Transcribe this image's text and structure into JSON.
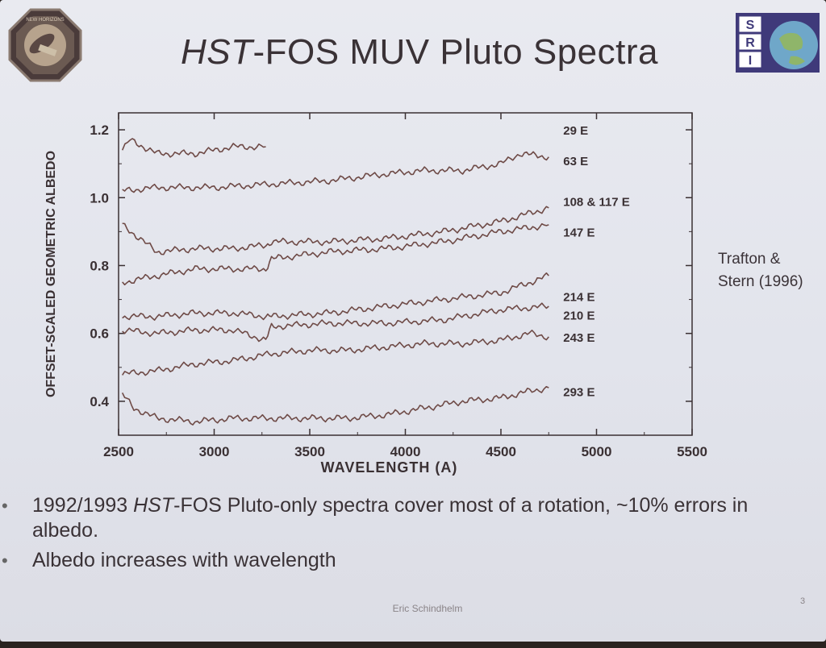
{
  "slide": {
    "title_italic": "HST",
    "title_rest": "-FOS MUV Pluto Spectra",
    "side_note_line1": "Trafton &",
    "side_note_line2": "Stern (1996)",
    "bullets": [
      {
        "italic_part": "HST",
        "before": "1992/1993 ",
        "after": "-FOS Pluto-only spectra cover most of a rotation, ~10% errors in albedo."
      },
      {
        "italic_part": "",
        "before": "Albedo increases with wavelength",
        "after": ""
      }
    ],
    "footer": "Eric Schindhelm",
    "page_number": "3"
  },
  "logos": {
    "left_icon": "new-horizons-mission-patch",
    "right_icon": "swri-logo",
    "right_text": [
      "S",
      "R",
      "I"
    ]
  },
  "colors": {
    "curve": "#6e4a46",
    "axis": "#3a3033",
    "text": "#3a3236"
  },
  "chart_data": {
    "type": "line",
    "xlabel": "WAVELENGTH (A)",
    "ylabel": "OFFSET-SCALED GEOMETRIC ALBEDO",
    "xlim": [
      2500,
      5500
    ],
    "ylim": [
      0.3,
      1.25
    ],
    "xticks": [
      2500,
      3000,
      3500,
      4000,
      4500,
      5000,
      5500
    ],
    "yticks": [
      0.4,
      0.6,
      0.8,
      1.0,
      1.2
    ],
    "ytick_labels": [
      "0.4",
      "0.6",
      "0.8",
      "1.0",
      "1.2"
    ],
    "series": [
      {
        "name": "29 E",
        "x": [
          2520,
          2560,
          2700,
          2900,
          3100,
          3270
        ],
        "y": [
          1.14,
          1.17,
          1.13,
          1.13,
          1.15,
          1.15
        ]
      },
      {
        "name": "63 E",
        "x": [
          2520,
          2700,
          3000,
          3300,
          3600,
          3900,
          4100,
          4300,
          4500,
          4600,
          4750
        ],
        "y": [
          1.02,
          1.03,
          1.03,
          1.04,
          1.05,
          1.07,
          1.08,
          1.08,
          1.1,
          1.13,
          1.12
        ]
      },
      {
        "name": "108 & 117 E",
        "x": [
          2520,
          2700,
          2900,
          3100,
          3270,
          3300,
          3600,
          3900,
          4200,
          4500,
          4750
        ],
        "y": [
          0.92,
          0.84,
          0.85,
          0.85,
          0.86,
          0.87,
          0.87,
          0.88,
          0.9,
          0.93,
          0.97
        ]
      },
      {
        "name": "147 E",
        "x": [
          2520,
          2700,
          2900,
          3100,
          3270,
          3300,
          3600,
          3900,
          4200,
          4500,
          4750
        ],
        "y": [
          0.75,
          0.77,
          0.79,
          0.79,
          0.79,
          0.82,
          0.84,
          0.85,
          0.87,
          0.9,
          0.92
        ]
      },
      {
        "name": "214 E",
        "x": [
          2520,
          2700,
          2900,
          3100,
          3270,
          3300,
          3600,
          3900,
          4200,
          4500,
          4750
        ],
        "y": [
          0.65,
          0.65,
          0.66,
          0.66,
          0.65,
          0.65,
          0.66,
          0.68,
          0.7,
          0.72,
          0.77
        ]
      },
      {
        "name": "210 E",
        "x": [
          2520,
          2700,
          2900,
          3100,
          3270,
          3300,
          3600,
          3900,
          4200,
          4500,
          4750
        ],
        "y": [
          0.61,
          0.6,
          0.61,
          0.61,
          0.58,
          0.62,
          0.63,
          0.63,
          0.64,
          0.67,
          0.68
        ]
      },
      {
        "name": "243 E",
        "x": [
          2520,
          2700,
          2900,
          3100,
          3300,
          3500,
          3700,
          3900,
          4100,
          4300,
          4500,
          4650,
          4750
        ],
        "y": [
          0.48,
          0.49,
          0.51,
          0.52,
          0.54,
          0.55,
          0.55,
          0.56,
          0.57,
          0.57,
          0.58,
          0.6,
          0.59
        ]
      },
      {
        "name": "293 E",
        "x": [
          2520,
          2580,
          2700,
          2900,
          3100,
          3300,
          3500,
          3700,
          3900,
          4100,
          4300,
          4500,
          4650,
          4750
        ],
        "y": [
          0.42,
          0.38,
          0.35,
          0.34,
          0.35,
          0.35,
          0.35,
          0.35,
          0.36,
          0.38,
          0.4,
          0.41,
          0.43,
          0.44
        ]
      }
    ]
  }
}
